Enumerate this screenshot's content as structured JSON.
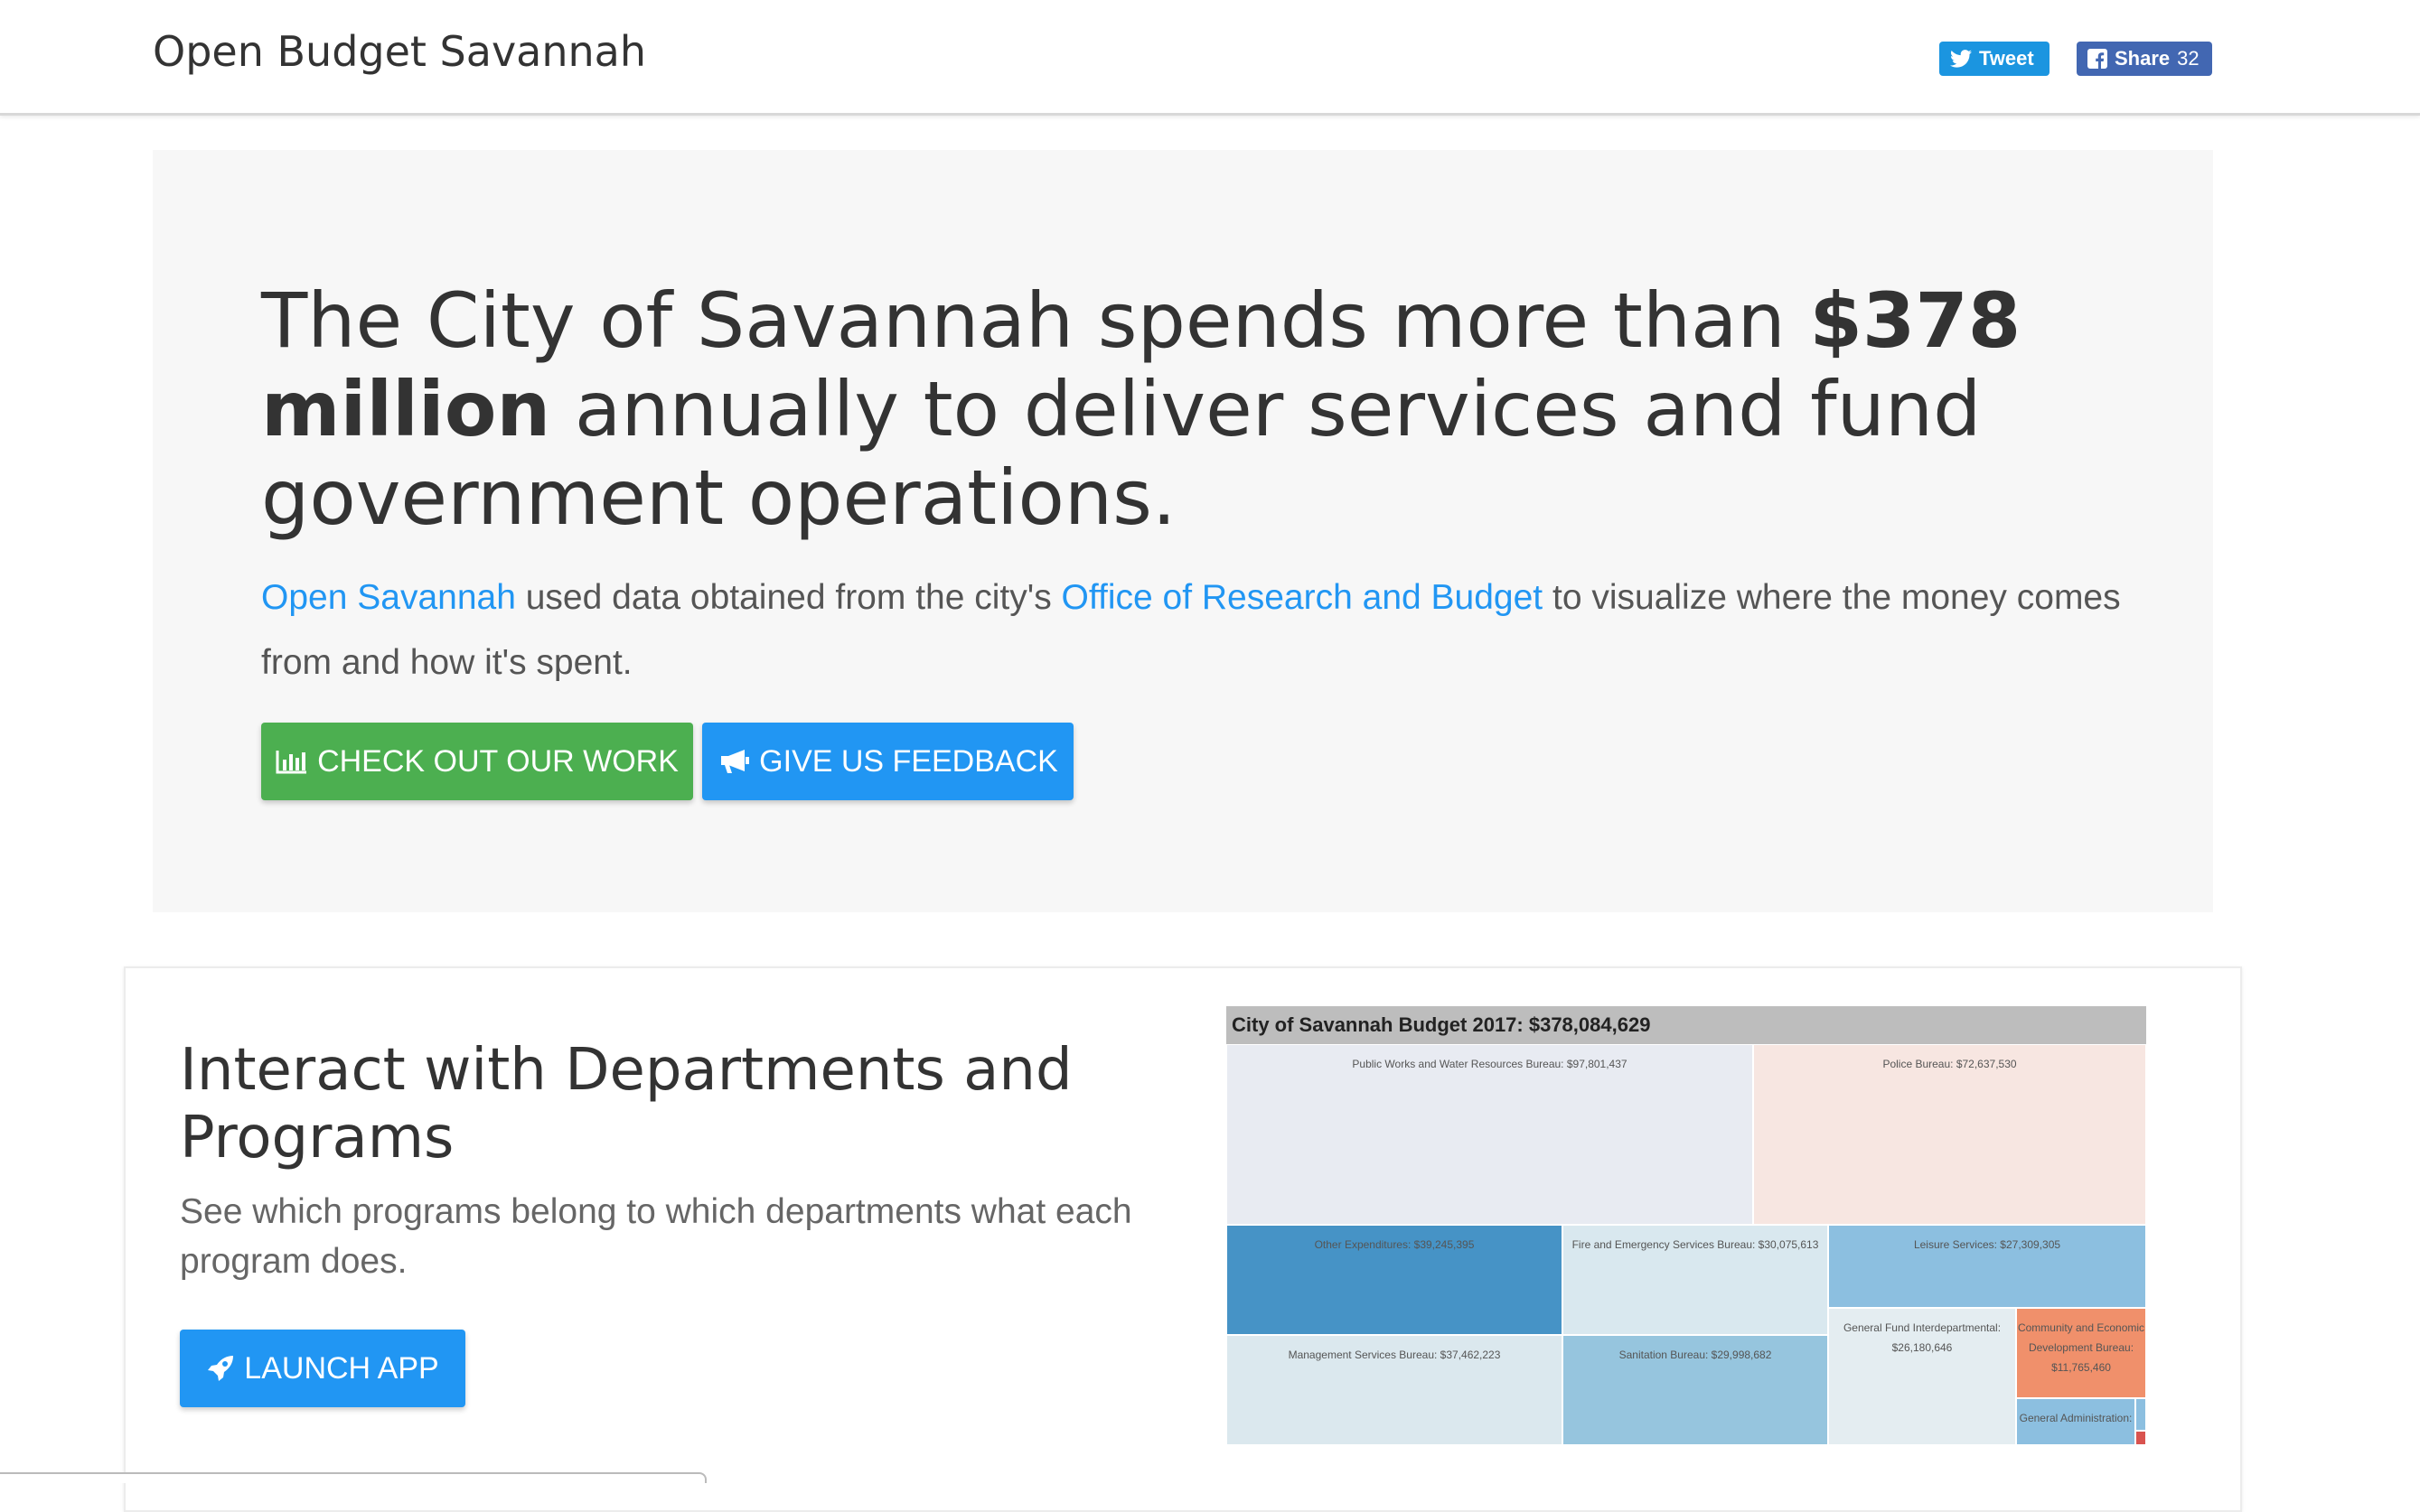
{
  "navbar": {
    "brand": "Open Budget Savannah",
    "tweet_label": "Tweet",
    "share_label": "Share",
    "share_count": "32"
  },
  "hero": {
    "headline_pre": "The City of Savannah spends more than ",
    "headline_bold": "$378 million",
    "headline_post": " annually to deliver services and fund government operations.",
    "lead_link1": "Open Savannah",
    "lead_mid": " used data obtained from the city's ",
    "lead_link2": "Office of Research and Budget",
    "lead_end": " to visualize where the money comes from and how it's spent.",
    "work_button": "CHECK OUT OUR WORK",
    "feedback_button": "GIVE US FEEDBACK"
  },
  "card": {
    "title": "Interact with Departments and Programs",
    "text": "See which programs belong to which departments what each program does.",
    "launch_button": "LAUNCH APP"
  },
  "treemap": {
    "title": "City of Savannah Budget 2017: $378,084,629",
    "cells": [
      {
        "label": "Public Works and Water Resources Bureau: $97,801,437",
        "color": "#e8ebf2"
      },
      {
        "label": "Police Bureau: $72,637,530",
        "color": "#f7e6e1"
      },
      {
        "label": "Other Expenditures: $39,245,395",
        "color": "#4693c6"
      },
      {
        "label": "Fire and Emergency Services Bureau: $30,075,613",
        "color": "#d9e8ef"
      },
      {
        "label": "Leisure Services: $27,309,305",
        "color": "#8cbfe0"
      },
      {
        "label": "Management Services Bureau: $37,462,223",
        "color": "#dbe8ee"
      },
      {
        "label": "Sanitation Bureau: $29,998,682",
        "color": "#96c5de"
      },
      {
        "label": "General Fund Interdepartmental: $26,180,646",
        "color": "#e4edf1"
      },
      {
        "label": "Community and Economic Development Bureau: $11,765,460",
        "color": "#f0906b"
      },
      {
        "label": "General Administration:",
        "color": "#8cbfe0"
      },
      {
        "label": "",
        "color": "#8cbfe0"
      },
      {
        "label": "",
        "color": "#d9534f"
      }
    ]
  }
}
